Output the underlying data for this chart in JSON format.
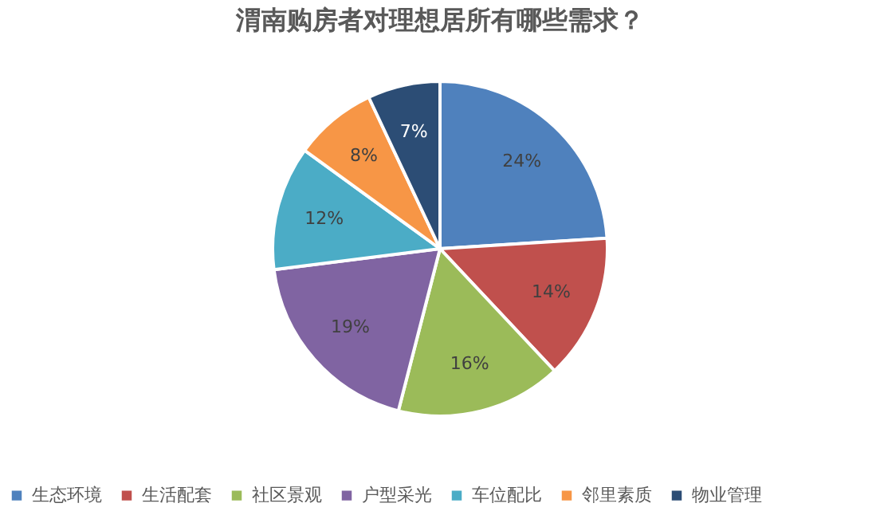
{
  "chart_data": {
    "type": "pie",
    "title": "渭南购房者对理想居所有哪些需求？",
    "categories": [
      "生态环境",
      "生活配套",
      "社区景观",
      "户型采光",
      "车位配比",
      "邻里素质",
      "物业管理"
    ],
    "values": [
      24,
      14,
      16,
      19,
      12,
      8,
      7
    ],
    "colors": [
      "#4f81bd",
      "#c0504d",
      "#9bbb59",
      "#8064a2",
      "#4bacc6",
      "#f79646",
      "#2c4d75"
    ],
    "value_labels": [
      "24%",
      "14%",
      "16%",
      "19%",
      "12%",
      "8%",
      "7%"
    ],
    "legend": "bottom"
  }
}
